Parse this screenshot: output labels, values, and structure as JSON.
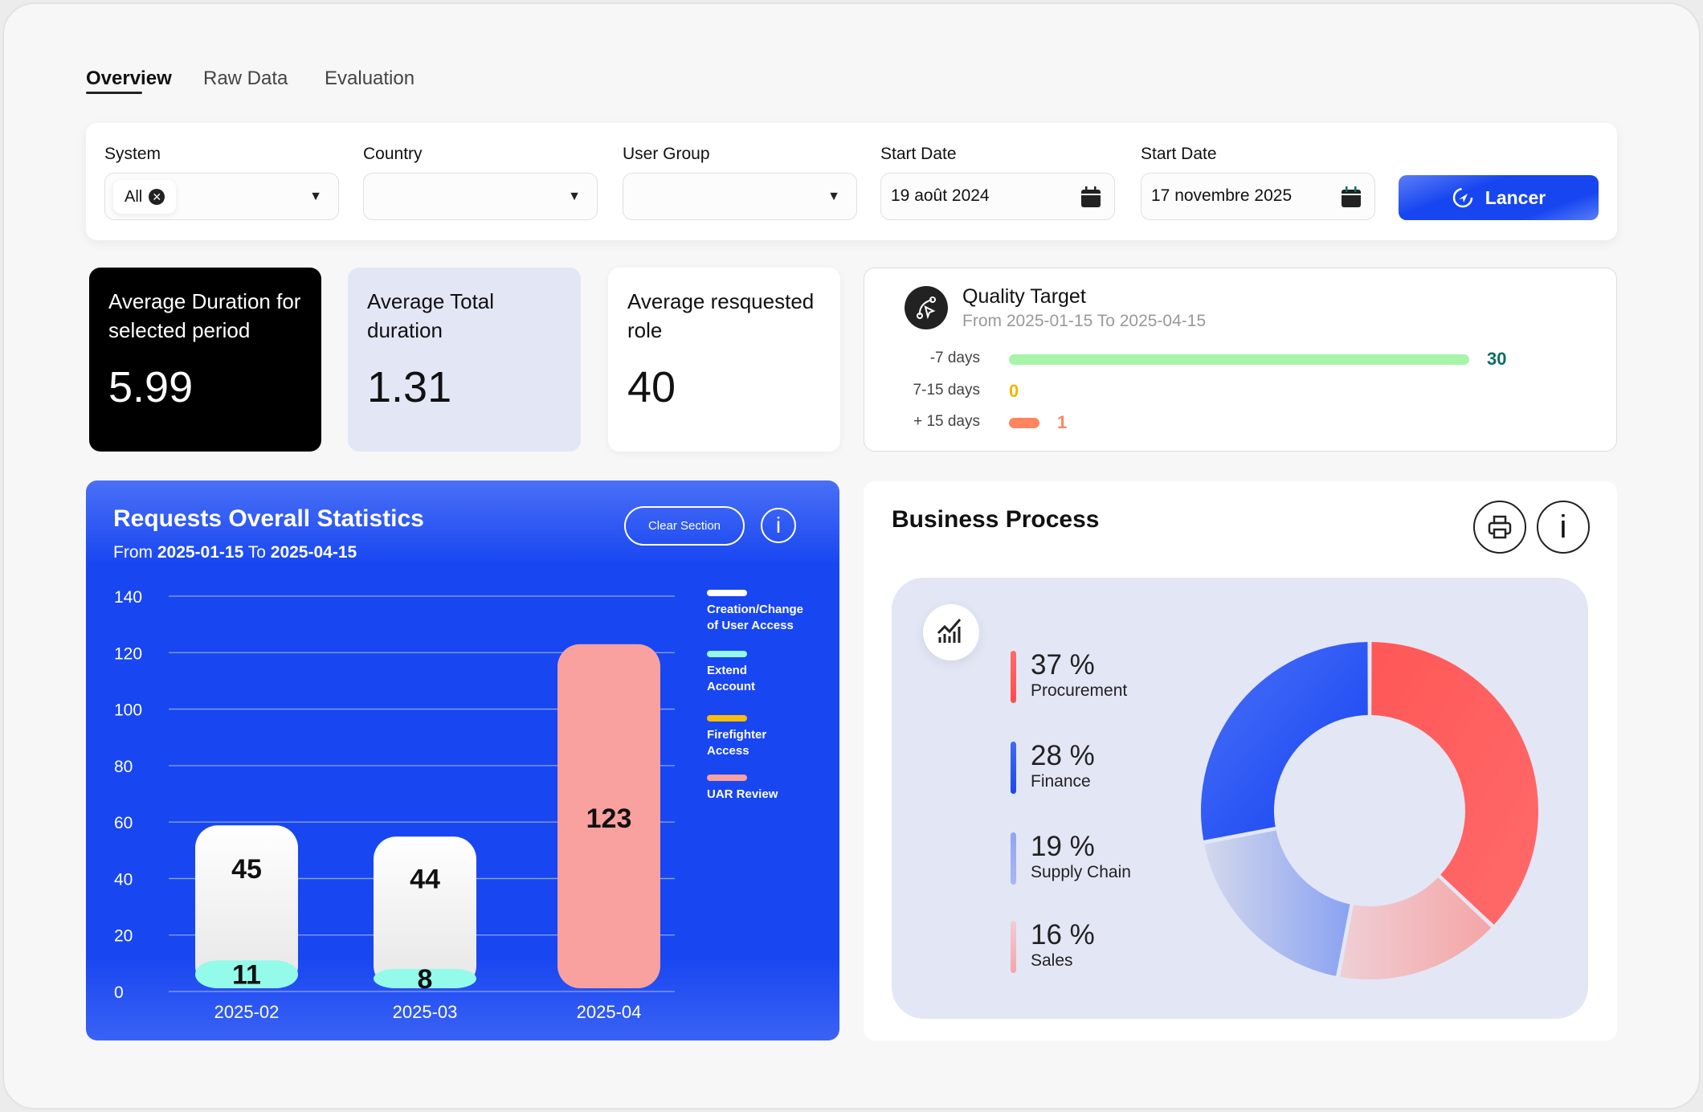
{
  "tabs": [
    {
      "label": "Overview",
      "active": true
    },
    {
      "label": "Raw Data"
    },
    {
      "label": "Evaluation"
    }
  ],
  "filters": {
    "system": {
      "label": "System",
      "chip": "All"
    },
    "country": {
      "label": "Country",
      "value": ""
    },
    "user_group": {
      "label": "User Group",
      "value": ""
    },
    "start_date": {
      "label": "Start Date",
      "value": "19 août 2024"
    },
    "end_date": {
      "label": "Start Date",
      "value": "17 novembre 2025"
    },
    "submit_label": "Lancer"
  },
  "kpis": [
    {
      "title": "Average Duration for selected period",
      "value": "5.99"
    },
    {
      "title": "Average Total duration",
      "value": "1.31"
    },
    {
      "title": "Average resquested role",
      "value": "40"
    }
  ],
  "quality": {
    "title": "Quality Target",
    "subtitle": "From 2025-01-15 To 2025-04-15",
    "rows": [
      {
        "label": "-7 days",
        "value": 30,
        "color": "#a6f5a8",
        "text_color": "#0d6e63"
      },
      {
        "label": "7-15 days",
        "value": 0,
        "color": "#f2b400",
        "text_color": "#f2b400"
      },
      {
        "label": "+ 15 days",
        "value": 1,
        "color": "#ff845f",
        "text_color": "#ff845f"
      }
    ]
  },
  "requests": {
    "title": "Requests Overall Statistics",
    "from_word": "From",
    "from": "2025-01-15",
    "to_word": "To",
    "to": "2025-04-15",
    "clear_label": "Clear Section"
  },
  "chart_data": [
    {
      "type": "bar",
      "stacked": true,
      "categories": [
        "2025-02",
        "2025-03",
        "2025-04"
      ],
      "ylim": [
        0,
        140
      ],
      "yticks": [
        0,
        20,
        40,
        60,
        80,
        100,
        120,
        140
      ],
      "grid": true,
      "legend_position": "right",
      "series": [
        {
          "name": "Creation/Change of User Access",
          "color": "#ffffff",
          "values": [
            45,
            44,
            0
          ]
        },
        {
          "name": "Extend Account",
          "color": "#94fbea",
          "values": [
            11,
            8,
            0
          ]
        },
        {
          "name": "Firefighter Access",
          "color": "#f9bc08",
          "values": [
            0,
            0,
            0
          ]
        },
        {
          "name": "UAR Review",
          "color": "#f9a19f",
          "values": [
            0,
            0,
            123
          ]
        }
      ]
    },
    {
      "type": "pie",
      "title": "Business Process",
      "slices": [
        {
          "label": "Procurement",
          "value": 37,
          "text": "37 %",
          "color": "#ff5a5a"
        },
        {
          "label": "Sales",
          "value": 16,
          "text": "16 %",
          "color": "#f4aeb0"
        },
        {
          "label": "Supply Chain",
          "value": 19,
          "text": "19 %",
          "color": "#98abf2"
        },
        {
          "label": "Finance",
          "value": 28,
          "text": "28 %",
          "color": "#1d48f0"
        }
      ]
    }
  ]
}
